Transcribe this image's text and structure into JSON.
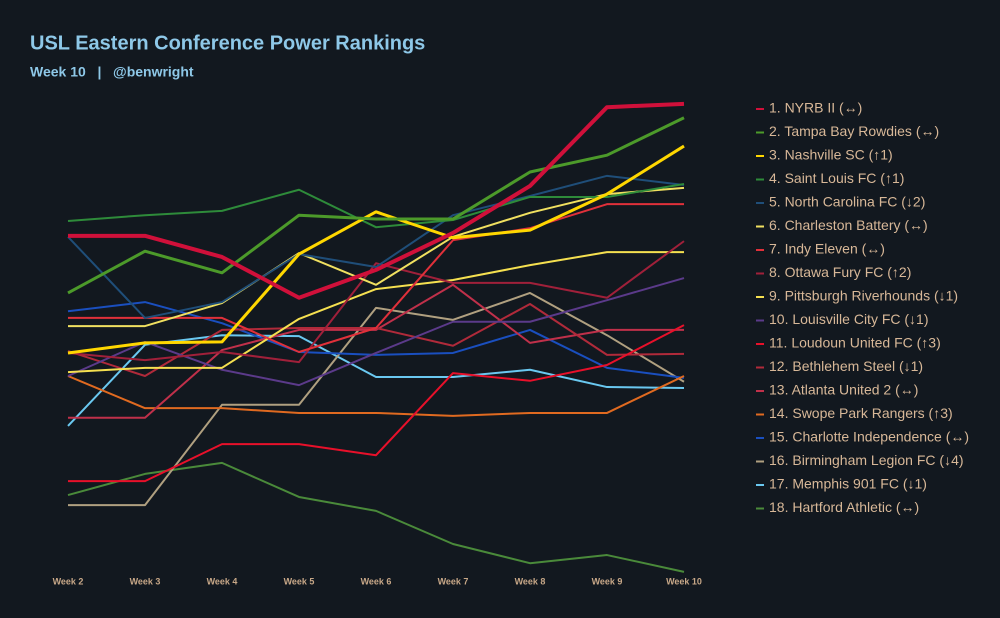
{
  "chart_data": {
    "type": "line",
    "title": "USL Eastern Conference Power Rankings",
    "subtitle": "Week 10   |   @benwright",
    "categories": [
      "Week 2",
      "Week 3",
      "Week 4",
      "Week 5",
      "Week 6",
      "Week 7",
      "Week 8",
      "Week 9",
      "Week 10"
    ],
    "ylim": [
      0,
      100
    ],
    "series": [
      {
        "name": "1. NYRB II (↔)",
        "color": "#d0103a",
        "width": 4,
        "values": [
          71.7,
          71.7,
          67.3,
          58.8,
          64.6,
          72.3,
          82.1,
          98.5,
          99.2
        ]
      },
      {
        "name": "2. Tampa Bay Rowdies (↔)",
        "color": "#4c9a2a",
        "width": 3,
        "values": [
          59.8,
          68.5,
          64,
          76,
          75.2,
          75.2,
          85,
          88.5,
          96.3
        ]
      },
      {
        "name": "3. Nashville SC (↑1)",
        "color": "#ffd700",
        "width": 3,
        "values": [
          47.3,
          49.4,
          49.6,
          67.9,
          76.7,
          71.3,
          72.9,
          80.4,
          90.4
        ]
      },
      {
        "name": "4. Saint Louis FC (↑1)",
        "color": "#2e8b3a",
        "width": 2,
        "values": [
          74.8,
          76,
          76.9,
          81.3,
          73.5,
          75,
          79.8,
          79.8,
          82.5
        ]
      },
      {
        "name": "5. North Carolina FC (↓2)",
        "color": "#1f4e79",
        "width": 2,
        "values": [
          71.5,
          54.6,
          57.9,
          67.9,
          65.2,
          76,
          80,
          84.2,
          82.3
        ]
      },
      {
        "name": "6. Charleston Battery (↔)",
        "color": "#f0e060",
        "width": 2,
        "values": [
          52.9,
          52.9,
          57.7,
          68.1,
          61.5,
          71.5,
          76.5,
          80.4,
          81.7
        ]
      },
      {
        "name": "7. Indy Eleven (↔)",
        "color": "#e0303a",
        "width": 2,
        "values": [
          54.6,
          54.6,
          54.6,
          47.5,
          52.5,
          70.8,
          73.3,
          78.3,
          78.3
        ]
      },
      {
        "name": "8. Ottawa Fury FC (↑2)",
        "color": "#a0203a",
        "width": 2,
        "values": [
          47.3,
          45.8,
          47.5,
          45.4,
          66,
          61.9,
          61.9,
          58.8,
          70.6
        ]
      },
      {
        "name": "9. Pittsburgh Riverhounds (↓1)",
        "color": "#f5e050",
        "width": 2,
        "values": [
          43.3,
          44.2,
          44.2,
          54.4,
          60.6,
          62.5,
          65.6,
          68.3,
          68.3
        ]
      },
      {
        "name": "10. Louisville City FC (↓1)",
        "color": "#5b3a8a",
        "width": 2,
        "values": [
          42.5,
          49.6,
          43.8,
          40.6,
          47.3,
          53.8,
          53.8,
          58.3,
          62.9
        ]
      },
      {
        "name": "11. Loudoun United FC (↑3)",
        "color": "#e8102a",
        "width": 2,
        "values": [
          20.6,
          20.6,
          28.3,
          28.3,
          26,
          43.1,
          41.5,
          44.8,
          53.1
        ]
      },
      {
        "name": "12. Bethlehem Steel (↓1)",
        "color": "#b02a3a",
        "width": 2,
        "values": [
          47.7,
          42.5,
          52.1,
          52.5,
          52.5,
          48.8,
          57.5,
          46.9,
          47.1
        ]
      },
      {
        "name": "13. Atlanta United 2 (↔)",
        "color": "#c0304a",
        "width": 2,
        "values": [
          33.8,
          33.8,
          47.9,
          52.1,
          52.1,
          61.5,
          49.4,
          52.1,
          52.1
        ]
      },
      {
        "name": "14. Swope Park Rangers (↑3)",
        "color": "#e06a20",
        "width": 2,
        "values": [
          42.5,
          35.8,
          35.8,
          34.8,
          34.8,
          34.2,
          34.8,
          34.8,
          42.5
        ]
      },
      {
        "name": "15. Charlotte Independence (↔)",
        "color": "#1a4fbf",
        "width": 2,
        "values": [
          56,
          57.9,
          53.5,
          47.5,
          46.9,
          47.3,
          52.1,
          44.2,
          42.1
        ]
      },
      {
        "name": "16. Birmingham Legion FC (↓4)",
        "color": "#b0a080",
        "width": 2,
        "values": [
          15.6,
          15.6,
          36.5,
          36.5,
          56.7,
          54.2,
          59.8,
          51,
          41.3
        ]
      },
      {
        "name": "17. Memphis 901 FC (↓1)",
        "color": "#6ac8f0",
        "width": 2,
        "values": [
          32.1,
          49,
          51,
          50.8,
          42.3,
          42.3,
          43.8,
          40.2,
          40
        ]
      },
      {
        "name": "18. Hartford Athletic (↔)",
        "color": "#4a8a3a",
        "width": 2,
        "values": [
          17.7,
          22.1,
          24.4,
          17.3,
          14.4,
          7.5,
          3.5,
          5.2,
          1.7
        ]
      }
    ]
  }
}
